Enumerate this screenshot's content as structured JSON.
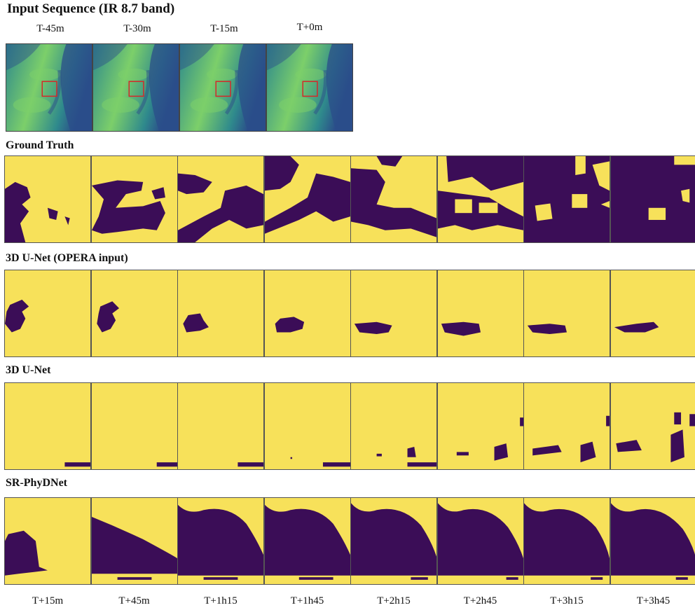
{
  "title": "Input Sequence (IR 8.7 band)",
  "input_labels": [
    "T-45m",
    "T-30m",
    "T-15m",
    "T+0m"
  ],
  "sections": [
    "Ground Truth",
    "3D U-Net (OPERA input)",
    "3D U-Net",
    "SR-PhyDNet"
  ],
  "output_labels": [
    "T+15m",
    "T+45m",
    "T+1h15",
    "T+1h45",
    "T+2h15",
    "T+2h45",
    "T+3h15",
    "T+3h45"
  ],
  "colors": {
    "mask_background": "#f7e15a",
    "mask_foreground": "#3b0d57",
    "satellite_dark": "#2b4e8a",
    "satellite_mid": "#2f8a8c",
    "satellite_light": "#7ccf6a",
    "roi_box": "#d62728"
  }
}
